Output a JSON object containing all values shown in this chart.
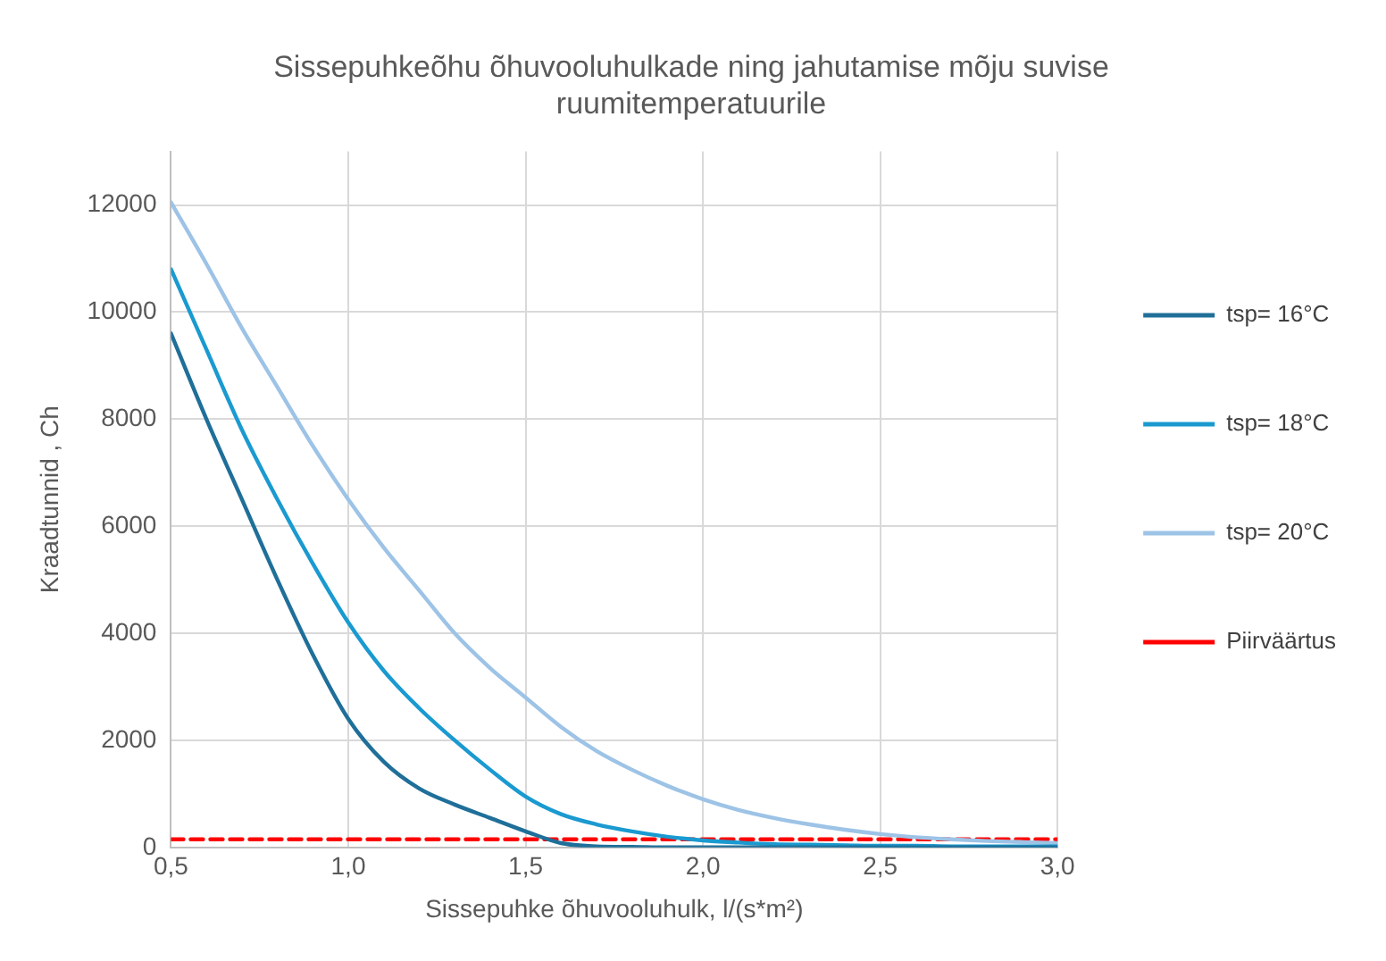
{
  "chart_data": {
    "type": "line",
    "title": "Sissepuhkeõhu õhuvooluhulkade ning jahutamise mõju suvise ruumitemperatuurile",
    "xlabel": "Sissepuhke õhuvooluhulk, l/(s*m²)",
    "ylabel": "Kraadtunnid , Ch",
    "x": [
      0.5,
      0.6,
      0.7,
      0.8,
      0.9,
      1.0,
      1.1,
      1.2,
      1.3,
      1.4,
      1.5,
      1.6,
      1.7,
      1.8,
      1.9,
      2.0,
      2.1,
      2.2,
      2.3,
      2.4,
      2.5,
      2.6,
      2.7,
      2.8,
      2.9,
      3.0
    ],
    "series": [
      {
        "name": "tsp= 16°C",
        "color": "#1f6f99",
        "values": [
          9600,
          8000,
          6500,
          5000,
          3600,
          2400,
          1600,
          1100,
          800,
          550,
          300,
          80,
          20,
          10,
          0,
          0,
          0,
          0,
          0,
          0,
          0,
          0,
          0,
          0,
          0,
          0
        ]
      },
      {
        "name": "tsp= 18°C",
        "color": "#1a9ad0",
        "values": [
          10800,
          9300,
          7800,
          6500,
          5300,
          4200,
          3300,
          2600,
          2000,
          1450,
          950,
          620,
          430,
          300,
          200,
          130,
          90,
          60,
          50,
          40,
          30,
          30,
          20,
          20,
          20,
          20
        ]
      },
      {
        "name": "tsp= 20°C",
        "color": "#9dc3e6",
        "values": [
          12050,
          10900,
          9700,
          8600,
          7500,
          6500,
          5600,
          4800,
          4000,
          3350,
          2800,
          2250,
          1800,
          1450,
          1150,
          900,
          700,
          550,
          430,
          330,
          250,
          190,
          150,
          120,
          100,
          80
        ]
      },
      {
        "name": "Piirväärtus",
        "color": "#ff0000",
        "line_style": "dashed",
        "values": [
          150,
          150,
          150,
          150,
          150,
          150,
          150,
          150,
          150,
          150,
          150,
          150,
          150,
          150,
          150,
          150,
          150,
          150,
          150,
          150,
          150,
          150,
          150,
          150,
          150,
          150
        ]
      }
    ],
    "xlim": [
      0.5,
      3.0
    ],
    "xticks": [
      {
        "value": 0.5,
        "label": "0,5"
      },
      {
        "value": 1.0,
        "label": "1,0"
      },
      {
        "value": 1.5,
        "label": "1,5"
      },
      {
        "value": 2.0,
        "label": "2,0"
      },
      {
        "value": 2.5,
        "label": "2,5"
      },
      {
        "value": 3.0,
        "label": "3,0"
      }
    ],
    "ylim": [
      0,
      13000
    ],
    "yticks": [
      0,
      2000,
      4000,
      6000,
      8000,
      10000,
      12000
    ],
    "grid": true,
    "legend": "right",
    "marker": "none"
  }
}
